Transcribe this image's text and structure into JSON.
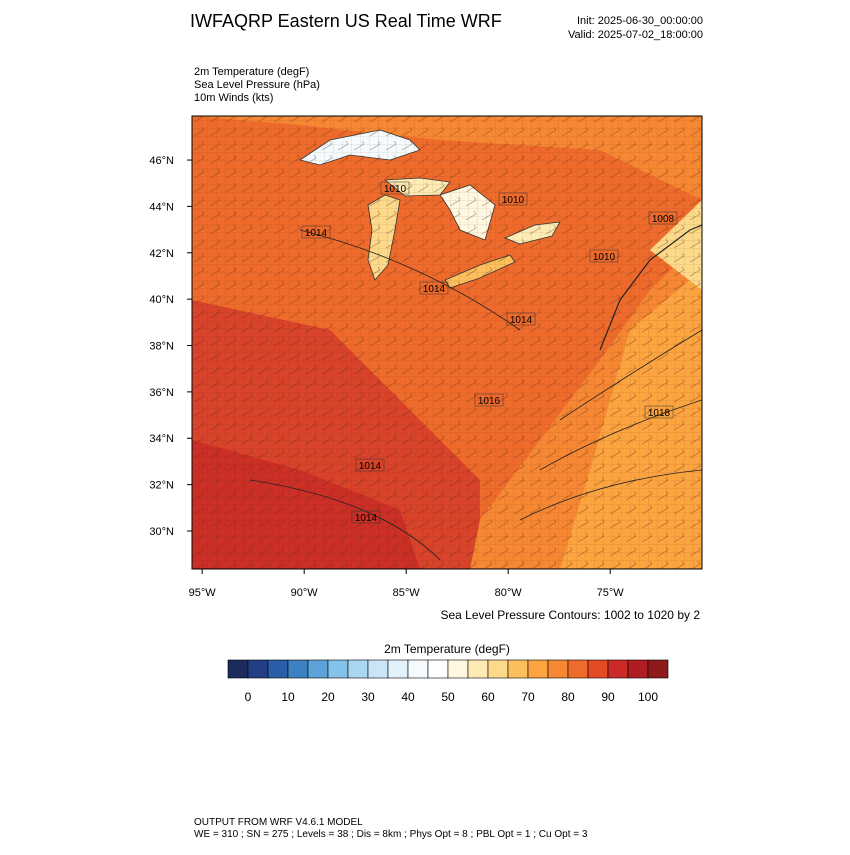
{
  "header": {
    "title": "IWFAQRP Eastern US Real Time WRF",
    "init": "Init: 2025-06-30_00:00:00",
    "valid": "Valid: 2025-07-02_18:00:00"
  },
  "fields": [
    "2m Temperature   (degF)",
    "Sea Level Pressure   (hPa)",
    "10m Winds   (kts)"
  ],
  "map": {
    "lat_range": [
      28.36,
      47.9
    ],
    "lon_range": [
      -95.5,
      -70.5
    ],
    "lat_ticks": [
      {
        "value": 30,
        "label": "30°N"
      },
      {
        "value": 32,
        "label": "32°N"
      },
      {
        "value": 34,
        "label": "34°N"
      },
      {
        "value": 36,
        "label": "36°N"
      },
      {
        "value": 38,
        "label": "38°N"
      },
      {
        "value": 40,
        "label": "40°N"
      },
      {
        "value": 42,
        "label": "42°N"
      },
      {
        "value": 44,
        "label": "44°N"
      },
      {
        "value": 46,
        "label": "46°N"
      }
    ],
    "lon_ticks": [
      {
        "value": -95,
        "label": "95°W"
      },
      {
        "value": -90,
        "label": "90°W"
      },
      {
        "value": -85,
        "label": "85°W"
      },
      {
        "value": -80,
        "label": "80°W"
      },
      {
        "value": -75,
        "label": "75°W"
      }
    ],
    "contour_labels": [
      "1010",
      "1010",
      "1008",
      "1010",
      "1014",
      "1014",
      "1014",
      "1016",
      "1018",
      "1014",
      "1014"
    ],
    "contour_note": "Sea Level Pressure Contours: 1002 to 1020 by 2"
  },
  "colorbar": {
    "title": "2m Temperature  (degF)",
    "levels": [
      0,
      5,
      10,
      15,
      20,
      25,
      30,
      35,
      40,
      45,
      50,
      55,
      60,
      65,
      70,
      75,
      80,
      85,
      90,
      95,
      100
    ],
    "colors": [
      "#1c2a5e",
      "#223f85",
      "#2a5ea8",
      "#3e80c4",
      "#5da2d8",
      "#85c2eb",
      "#a9d7f2",
      "#c8e6f7",
      "#e2f1fa",
      "#f5fafd",
      "#ffffff",
      "#fff7e0",
      "#fdebb3",
      "#fdd98a",
      "#fcbf5b",
      "#fba440",
      "#f68833",
      "#ef6b2c",
      "#e34b27",
      "#cc2a26",
      "#b01c22",
      "#8e1a1c"
    ],
    "ticks": [
      0,
      10,
      20,
      30,
      40,
      50,
      60,
      70,
      80,
      90,
      100
    ]
  },
  "footer": {
    "line1": "OUTPUT FROM WRF V4.6.1 MODEL",
    "line2": "WE = 310 ; SN = 275 ; Levels = 38 ; Dis = 8km ; Phys Opt = 8 ; PBL Opt = 1 ; Cu Opt = 3"
  }
}
